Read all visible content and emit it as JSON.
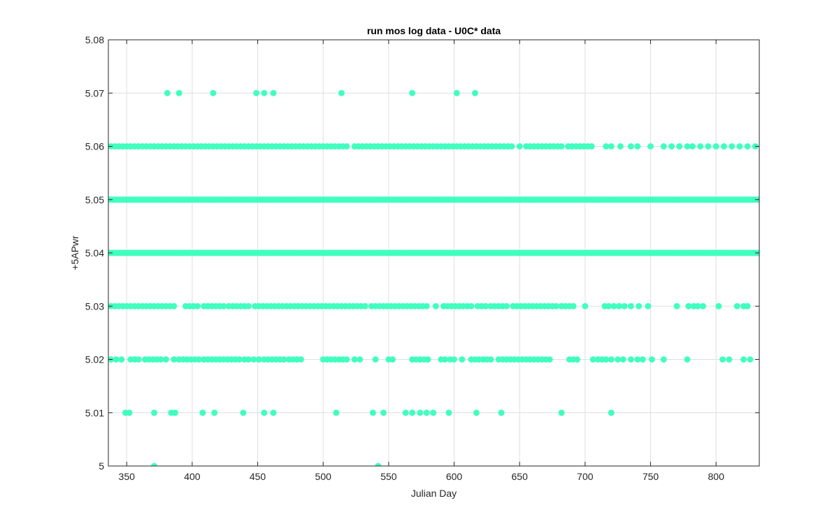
{
  "chart_data": {
    "type": "scatter",
    "title": "run mos log data - U0C* data",
    "xlabel": "Julian Day",
    "ylabel": "+5APwr",
    "xlim": [
      336,
      833
    ],
    "ylim": [
      5.0,
      5.08
    ],
    "xticks": [
      350,
      400,
      450,
      500,
      550,
      600,
      650,
      700,
      750,
      800
    ],
    "xtick_labels": [
      "350",
      "400",
      "450",
      "500",
      "550",
      "600",
      "650",
      "700",
      "750",
      "800"
    ],
    "yticks": [
      5.0,
      5.01,
      5.02,
      5.03,
      5.04,
      5.05,
      5.06,
      5.07,
      5.08
    ],
    "ytick_labels": [
      "5",
      "5.01",
      "5.02",
      "5.03",
      "5.04",
      "5.05",
      "5.06",
      "5.07",
      "5.08"
    ],
    "grid": true,
    "marker_color": "#40FFBF",
    "series": [
      {
        "points": [
          [
            371,
            5.0
          ],
          [
            542,
            5.0
          ],
          [
            349,
            5.01
          ],
          [
            352,
            5.01
          ],
          [
            371,
            5.01
          ],
          [
            384,
            5.01
          ],
          [
            387,
            5.01
          ],
          [
            408,
            5.01
          ],
          [
            417,
            5.01
          ],
          [
            439,
            5.01
          ],
          [
            455,
            5.01
          ],
          [
            462,
            5.01
          ],
          [
            510,
            5.01
          ],
          [
            538,
            5.01
          ],
          [
            546,
            5.01
          ],
          [
            563,
            5.01
          ],
          [
            568,
            5.01
          ],
          [
            574,
            5.01
          ],
          [
            579,
            5.01
          ],
          [
            584,
            5.01
          ],
          [
            596,
            5.01
          ],
          [
            617,
            5.01
          ],
          [
            636,
            5.01
          ],
          [
            682,
            5.01
          ],
          [
            720,
            5.01
          ],
          [
            381,
            5.07
          ],
          [
            390,
            5.07
          ],
          [
            416,
            5.07
          ],
          [
            449,
            5.07
          ],
          [
            455,
            5.07
          ],
          [
            462,
            5.07
          ],
          [
            514,
            5.07
          ],
          [
            568,
            5.07
          ],
          [
            602,
            5.07
          ],
          [
            616,
            5.07
          ]
        ],
        "bands": [
          {
            "y": 5.02,
            "x": [
              338,
              342,
              346,
              353,
              356,
              359,
              364,
              367,
              370,
              373,
              376,
              380,
              386,
              390,
              393,
              396,
              399,
              402,
              405,
              409,
              412,
              415,
              418,
              421,
              424,
              427,
              430,
              433,
              436,
              440,
              443,
              447,
              451,
              455,
              458,
              461,
              464,
              467,
              470,
              474,
              477,
              480,
              483,
              500,
              503,
              506,
              509,
              512,
              515,
              518,
              524,
              528,
              540,
              550,
              553,
              568,
              571,
              574,
              577,
              580,
              590,
              593,
              597,
              600,
              606,
              613,
              616,
              619,
              622,
              625,
              628,
              634,
              637,
              640,
              643,
              646,
              649,
              652,
              655,
              658,
              661,
              664,
              667,
              670,
              673,
              688,
              691,
              694,
              706,
              710,
              713,
              716,
              720,
              725,
              729,
              735,
              740,
              744,
              751,
              760,
              778,
              805,
              810,
              821,
              826
            ]
          },
          {
            "y": 5.03,
            "x": [
              338,
              341,
              344,
              347,
              350,
              353,
              356,
              359,
              362,
              365,
              368,
              371,
              374,
              377,
              380,
              383,
              386,
              395,
              398,
              401,
              404,
              409,
              412,
              415,
              418,
              421,
              424,
              428,
              431,
              434,
              437,
              440,
              443,
              448,
              451,
              454,
              457,
              460,
              463,
              466,
              469,
              472,
              475,
              478,
              481,
              484,
              487,
              490,
              493,
              496,
              499,
              502,
              505,
              508,
              511,
              514,
              517,
              520,
              523,
              526,
              529,
              532,
              537,
              540,
              543,
              546,
              549,
              552,
              555,
              558,
              561,
              564,
              567,
              570,
              573,
              576,
              579,
              586,
              592,
              595,
              598,
              601,
              604,
              607,
              610,
              613,
              618,
              621,
              624,
              628,
              631,
              634,
              637,
              640,
              645,
              648,
              651,
              654,
              657,
              660,
              663,
              666,
              669,
              672,
              675,
              678,
              682,
              685,
              688,
              691,
              700,
              715,
              718,
              722,
              726,
              730,
              735,
              741,
              748,
              770,
              779,
              783,
              786,
              790,
              802,
              816,
              821,
              824
            ]
          },
          {
            "y": 5.04,
            "x_range": [
              336,
              833
            ]
          },
          {
            "y": 5.05,
            "x_range": [
              336,
              833
            ]
          },
          {
            "y": 5.06,
            "x": [
              338,
              341,
              344,
              347,
              350,
              353,
              356,
              359,
              362,
              365,
              368,
              371,
              374,
              377,
              380,
              383,
              386,
              389,
              392,
              395,
              398,
              401,
              404,
              407,
              410,
              413,
              416,
              419,
              422,
              425,
              428,
              431,
              434,
              437,
              440,
              443,
              446,
              449,
              452,
              455,
              458,
              461,
              464,
              467,
              470,
              473,
              476,
              479,
              482,
              485,
              488,
              491,
              494,
              497,
              500,
              503,
              506,
              509,
              512,
              515,
              518,
              524,
              527,
              530,
              533,
              536,
              539,
              542,
              545,
              548,
              551,
              554,
              557,
              560,
              563,
              566,
              569,
              572,
              575,
              578,
              581,
              584,
              587,
              590,
              593,
              596,
              599,
              602,
              605,
              608,
              611,
              614,
              617,
              620,
              623,
              626,
              629,
              632,
              635,
              638,
              641,
              644,
              650,
              655,
              658,
              661,
              664,
              667,
              670,
              673,
              676,
              679,
              682,
              687,
              690,
              693,
              696,
              699,
              702,
              705,
              716,
              720,
              727,
              735,
              740,
              750,
              760,
              766,
              772,
              778,
              782,
              788,
              794,
              800,
              806,
              812,
              818,
              824,
              830
            ]
          }
        ]
      }
    ]
  }
}
